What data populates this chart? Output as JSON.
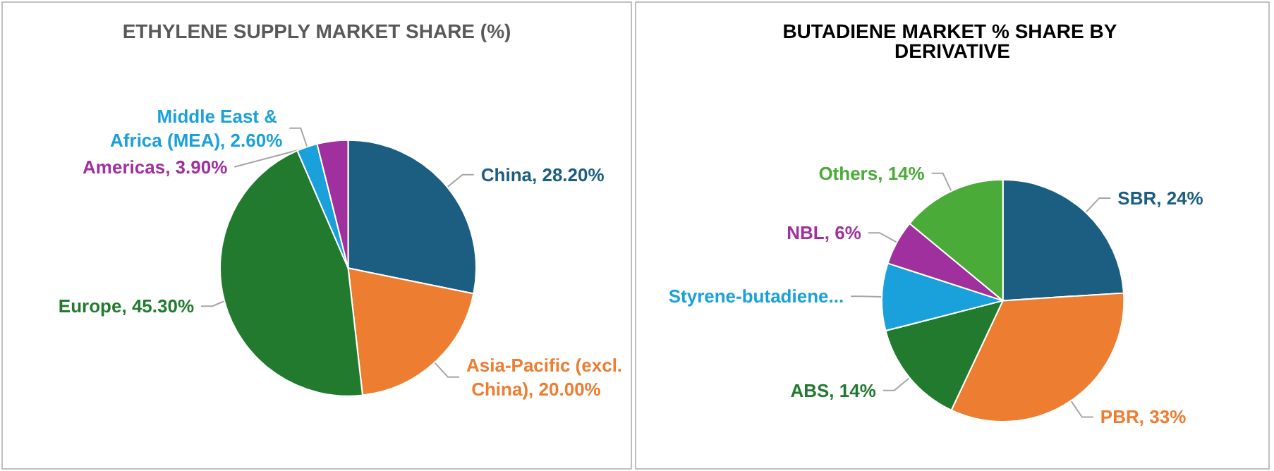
{
  "chart_data": [
    {
      "type": "pie",
      "title": "ETHYLENE SUPPLY MARKET SHARE (%)",
      "categories": [
        "China",
        "Asia-Pacific (excl. China)",
        "Europe",
        "Middle East & Africa (MEA)",
        "Americas"
      ],
      "values": [
        28.2,
        20.0,
        45.3,
        2.6,
        3.9
      ],
      "value_labels": [
        "28.20%",
        "20.00%",
        "45.30%",
        "2.60%",
        "3.90%"
      ],
      "colors": [
        "#1b5e82",
        "#ed7d31",
        "#217a2e",
        "#1aa0db",
        "#a0309e"
      ]
    },
    {
      "type": "pie",
      "title": "BUTADIENE MARKET % SHARE BY DERIVATIVE",
      "categories": [
        "SBR",
        "PBR",
        "ABS",
        "Styrene-butadiene...",
        "NBL",
        "Others"
      ],
      "values": [
        24,
        33,
        14,
        9,
        6,
        14
      ],
      "value_labels": [
        "24%",
        "33%",
        "14%",
        null,
        "6%",
        "14%"
      ],
      "colors": [
        "#1b5e82",
        "#ed7d31",
        "#217a2e",
        "#1aa0db",
        "#a0309e",
        "#4aab38"
      ]
    }
  ]
}
